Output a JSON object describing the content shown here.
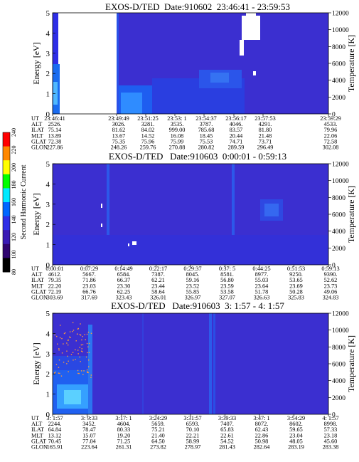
{
  "colorbar": {
    "label": "Second Harmonic Current",
    "ticks": [
      "80",
      "100",
      "120",
      "140",
      "160",
      "180",
      "200",
      "220",
      "240"
    ]
  },
  "row_labels": [
    "UT",
    "ALT",
    "ILAT",
    "MLT",
    "GLAT",
    "GLON"
  ],
  "chart_data": [
    {
      "type": "heatmap",
      "title": "EXOS-D/TED  Date:910602  23:46:41 - 23:59:53",
      "ylabel": "Energy [eV]",
      "y2label": "Temperature [K]",
      "ylim": [
        0,
        5
      ],
      "yticks": [
        "0",
        "1",
        "2",
        "3",
        "4",
        "5"
      ],
      "y2lim": [
        0,
        12000
      ],
      "y2ticks": [
        "0",
        "2000",
        "4000",
        "6000",
        "8000",
        "10000",
        "12000"
      ],
      "row_labels": [
        "UT",
        "ALT",
        "ILAT",
        "MLT",
        "GLAT",
        "GLON"
      ],
      "columns": [
        [
          "23:46:41",
          "2526.",
          "75.14",
          "13.89",
          "72.38",
          "227.86"
        ],
        [
          "23:49:49",
          "3026.",
          "81.62",
          "13.67",
          "75.35",
          "248.26"
        ],
        [
          "23:51:25",
          "3281.",
          "84.02",
          "14.52",
          "75.96",
          "259.76"
        ],
        [
          "23:53: 1",
          "3535.",
          "999.00",
          "16.08",
          "75.99",
          "270.88"
        ],
        [
          "23:54:37",
          "3787.",
          "785.68",
          "18.45",
          "75.53",
          "280.82"
        ],
        [
          "23:56:17",
          "4046.",
          "83.57",
          "20.44",
          "74.71",
          "289.59"
        ],
        [
          "23:57:53",
          "4291.",
          "81.80",
          "21.48",
          "73.71",
          "296.49"
        ],
        [
          "23:59:29",
          "4533.",
          "79.96",
          "22.06",
          "72.58",
          "302.08"
        ]
      ]
    },
    {
      "type": "heatmap",
      "title": "EXOS-D/TED   Date:910603  0:00:01 - 0:59:13",
      "ylabel": "Energy [eV]",
      "y2label": "Temperature [K]",
      "ylim": [
        0,
        5
      ],
      "yticks": [
        "0",
        "1",
        "2",
        "3",
        "4",
        "5"
      ],
      "y2lim": [
        0,
        12000
      ],
      "y2ticks": [
        "0",
        "2000",
        "4000",
        "6000",
        "8000",
        "10000",
        "12000"
      ],
      "row_labels": [
        "UT",
        "ALT",
        "ILAT",
        "MLT",
        "GLAT",
        "GLON"
      ],
      "columns": [
        [
          "0:00:01",
          "4612.",
          "79.35",
          "22.20",
          "72.19",
          "303.69"
        ],
        [
          "0:07:29",
          "5667.",
          "71.86",
          "23.03",
          "66.76",
          "317.69"
        ],
        [
          "0:14:49",
          "6584.",
          "66.37",
          "23.30",
          "62.25",
          "323.43"
        ],
        [
          "0:22:17",
          "7387.",
          "62.21",
          "23.44",
          "58.64",
          "326.01"
        ],
        [
          "0:29:37",
          "8045.",
          "59.16",
          "23.52",
          "55.85",
          "326.97"
        ],
        [
          "0:37: 5",
          "8581.",
          "56.80",
          "23.59",
          "53.58",
          "327.07"
        ],
        [
          "0:44:25",
          "8977.",
          "55.03",
          "23.64",
          "51.78",
          "326.63"
        ],
        [
          "0:51:53",
          "9250.",
          "53.65",
          "23.69",
          "50.28",
          "325.83"
        ],
        [
          "0:59:13",
          "9390.",
          "52.62",
          "23.73",
          "49.06",
          "324.83"
        ]
      ]
    },
    {
      "type": "heatmap",
      "title": "EXOS-D/TED   Date:910603  3: 1:57 - 4: 1:57",
      "ylabel": "Energy [eV]",
      "y2label": "Temperature [K]",
      "ylim": [
        0,
        5
      ],
      "yticks": [
        "0",
        "1",
        "2",
        "3",
        "4",
        "5"
      ],
      "y2lim": [
        0,
        12000
      ],
      "y2ticks": [
        "0",
        "2000",
        "4000",
        "6000",
        "8000",
        "10000",
        "12000"
      ],
      "row_labels": [
        "UT",
        "ALT",
        "ILAT",
        "MLT",
        "GLAT",
        "GLON"
      ],
      "columns": [
        [
          "3: 1:57",
          "2244.",
          "64.84",
          "13.12",
          "70.45",
          "165.91"
        ],
        [
          "3: 9:33",
          "3452.",
          "78.47",
          "15.07",
          "77.04",
          "223.64"
        ],
        [
          "3:17: 1",
          "4604.",
          "80.33",
          "19.20",
          "71.25",
          "261.31"
        ],
        [
          "3:24:29",
          "5659.",
          "75.21",
          "21.40",
          "64.50",
          "273.82"
        ],
        [
          "3:31:57",
          "6593.",
          "70.10",
          "22.21",
          "58.99",
          "278.97"
        ],
        [
          "3:39:33",
          "7407.",
          "65.83",
          "22.61",
          "54.52",
          "281.43"
        ],
        [
          "3:47: 1",
          "8072.",
          "62.43",
          "22.86",
          "50.98",
          "282.64"
        ],
        [
          "3:54:29",
          "8602.",
          "59.65",
          "23.04",
          "48.05",
          "283.19"
        ],
        [
          "4: 1:57",
          "8998.",
          "57.33",
          "23.18",
          "45.60",
          "283.38"
        ]
      ]
    }
  ]
}
